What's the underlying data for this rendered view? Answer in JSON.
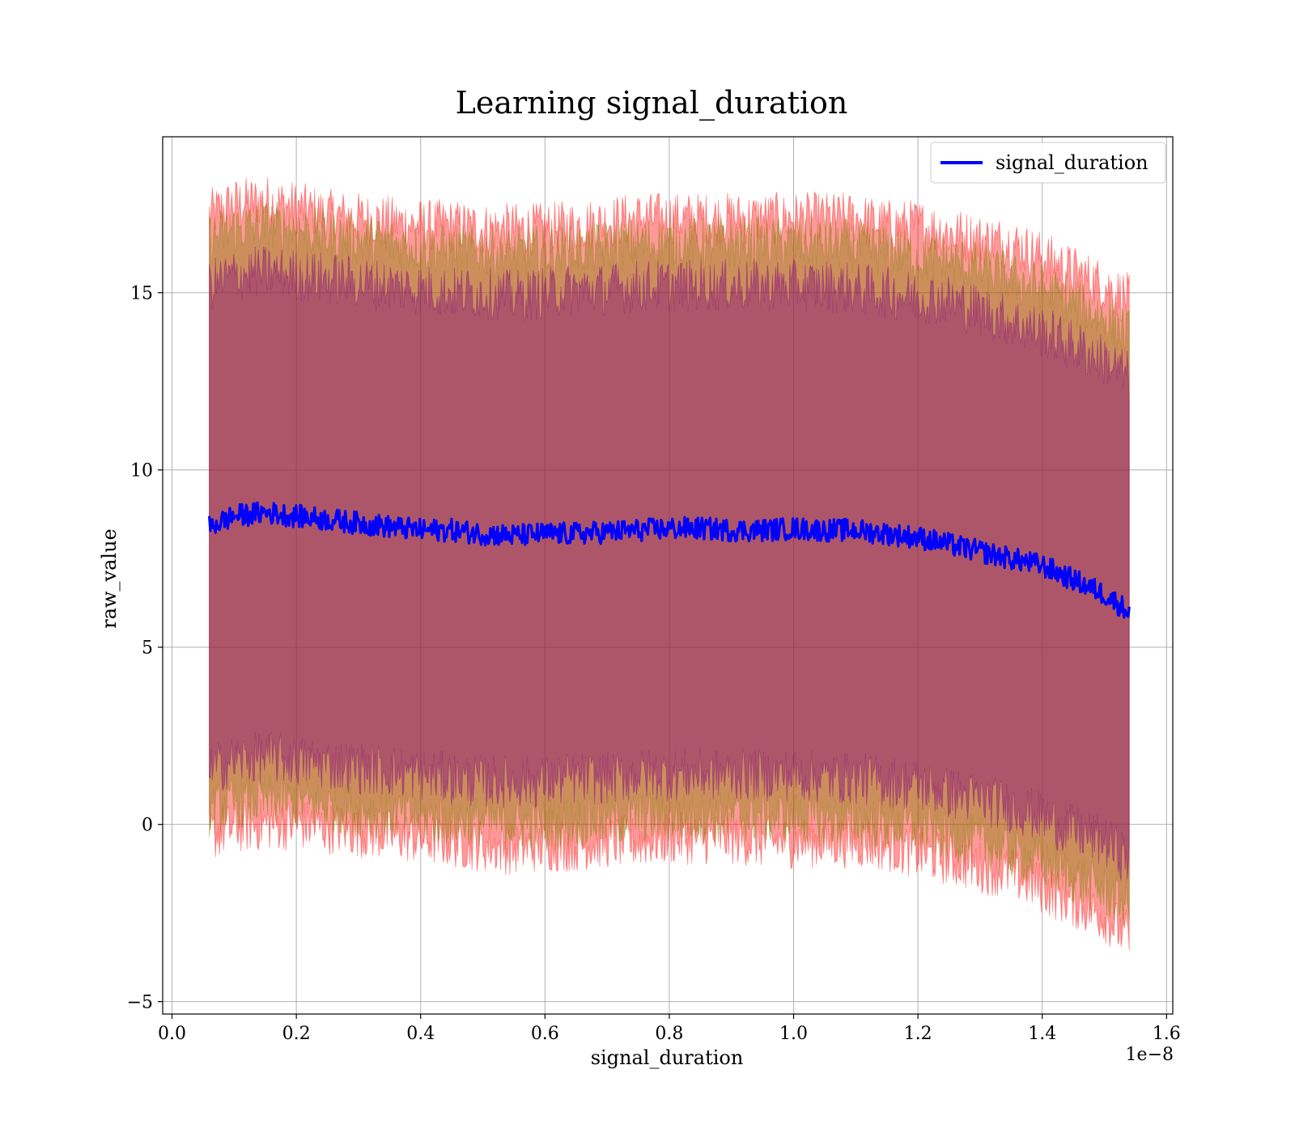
{
  "chart_data": {
    "type": "line",
    "title": "Learning signal_duration",
    "xlabel": "signal_duration",
    "ylabel": "raw_value",
    "x_offset_label": "1e−8",
    "xlim": [
      -0.015,
      1.61
    ],
    "ylim": [
      -5.35,
      19.4
    ],
    "x_ticks": [
      0.0,
      0.2,
      0.4,
      0.6,
      0.8,
      1.0,
      1.2,
      1.4,
      1.6
    ],
    "x_tick_labels": [
      "0.0",
      "0.2",
      "0.4",
      "0.6",
      "0.8",
      "1.0",
      "1.2",
      "1.4",
      "1.6"
    ],
    "y_ticks": [
      -5,
      0,
      5,
      10,
      15
    ],
    "y_tick_labels": [
      "−5",
      "0",
      "5",
      "10",
      "15"
    ],
    "grid": true,
    "legend_position": "top-right",
    "colors": {
      "line": "#0000ff",
      "band_outer": "#ff0000",
      "band_middle": "#808000",
      "band_inner": "#800080",
      "grid": "#b0b0b0"
    },
    "series": [
      {
        "name": "signal_duration",
        "x": [
          0.06,
          0.1,
          0.15,
          0.2,
          0.25,
          0.3,
          0.35,
          0.4,
          0.45,
          0.5,
          0.55,
          0.6,
          0.65,
          0.7,
          0.75,
          0.8,
          0.85,
          0.9,
          0.95,
          1.0,
          1.05,
          1.1,
          1.15,
          1.2,
          1.25,
          1.3,
          1.35,
          1.4,
          1.45,
          1.5,
          1.54
        ],
        "y": [
          8.4,
          8.7,
          8.8,
          8.7,
          8.6,
          8.5,
          8.4,
          8.3,
          8.3,
          8.2,
          8.15,
          8.2,
          8.2,
          8.25,
          8.3,
          8.35,
          8.35,
          8.3,
          8.3,
          8.35,
          8.3,
          8.3,
          8.2,
          8.1,
          7.9,
          7.7,
          7.5,
          7.3,
          6.9,
          6.5,
          6.0
        ]
      }
    ],
    "bands": [
      {
        "level": "outer",
        "lower": [
          -0.3,
          -0.1,
          0.0,
          0.0,
          -0.1,
          -0.2,
          -0.3,
          -0.4,
          -0.5,
          -0.6,
          -0.7,
          -0.6,
          -0.6,
          -0.5,
          -0.5,
          -0.4,
          -0.4,
          -0.4,
          -0.5,
          -0.5,
          -0.5,
          -0.5,
          -0.6,
          -0.8,
          -1.0,
          -1.2,
          -1.4,
          -1.8,
          -2.2,
          -2.6,
          -3.2
        ],
        "upper": [
          17.2,
          17.5,
          17.6,
          17.4,
          17.2,
          17.1,
          17.0,
          16.9,
          16.9,
          16.8,
          16.8,
          16.8,
          16.9,
          17.0,
          17.1,
          17.1,
          17.1,
          17.1,
          17.1,
          17.1,
          17.1,
          17.1,
          16.9,
          16.9,
          16.7,
          16.5,
          16.4,
          16.0,
          15.6,
          15.2,
          14.8
        ]
      },
      {
        "level": "middle",
        "lower": [
          0.4,
          0.6,
          0.7,
          0.6,
          0.5,
          0.4,
          0.3,
          0.2,
          0.1,
          0.1,
          0.0,
          0.0,
          0.1,
          0.1,
          0.2,
          0.2,
          0.2,
          0.2,
          0.2,
          0.2,
          0.1,
          0.1,
          0.0,
          -0.1,
          -0.3,
          -0.5,
          -0.8,
          -1.1,
          -1.5,
          -1.9,
          -2.3
        ],
        "upper": [
          16.5,
          16.8,
          16.9,
          16.8,
          16.6,
          16.5,
          16.4,
          16.3,
          16.2,
          16.2,
          16.1,
          16.2,
          16.2,
          16.3,
          16.4,
          16.4,
          16.4,
          16.4,
          16.4,
          16.4,
          16.4,
          16.3,
          16.2,
          16.0,
          15.9,
          15.7,
          15.4,
          15.1,
          14.7,
          14.3,
          13.8
        ]
      },
      {
        "level": "inner",
        "lower": [
          1.5,
          1.8,
          1.9,
          1.8,
          1.7,
          1.6,
          1.5,
          1.4,
          1.3,
          1.2,
          1.2,
          1.2,
          1.3,
          1.3,
          1.4,
          1.4,
          1.4,
          1.4,
          1.4,
          1.4,
          1.3,
          1.3,
          1.2,
          1.1,
          0.9,
          0.7,
          0.5,
          0.2,
          -0.2,
          -0.5,
          -1.0
        ],
        "upper": [
          15.2,
          15.5,
          15.6,
          15.5,
          15.4,
          15.3,
          15.2,
          15.1,
          15.0,
          15.0,
          14.9,
          15.0,
          15.1,
          15.1,
          15.2,
          15.2,
          15.2,
          15.2,
          15.2,
          15.2,
          15.2,
          15.1,
          15.0,
          14.9,
          14.8,
          14.5,
          14.2,
          13.9,
          13.5,
          13.1,
          12.6
        ]
      }
    ]
  }
}
